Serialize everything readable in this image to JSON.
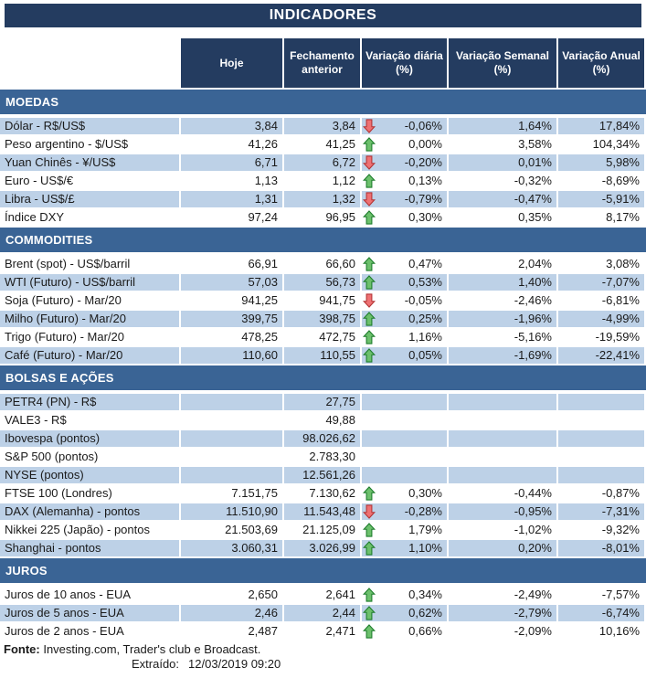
{
  "title": "INDICADORES",
  "columns": [
    {
      "label": "Hoje"
    },
    {
      "label": "Fechamento anterior"
    },
    {
      "label": "Variação diária (%)"
    },
    {
      "label": "Variação Semanal (%)"
    },
    {
      "label": "Variação Anual (%)"
    }
  ],
  "colors": {
    "header_navy": "#243c60",
    "section_blue": "#3a6495",
    "row_shaded_blue": "#bdd1e7",
    "arrow_up_fill": "#6cc06c",
    "arrow_up_stroke": "#1e7d2c",
    "arrow_down_fill": "#ee7173",
    "arrow_down_stroke": "#b43434"
  },
  "sections": [
    {
      "label": "MOEDAS",
      "first_row_shaded": true,
      "rows": [
        {
          "label": "Dólar - R$/US$",
          "hoje": "3,84",
          "fechamento": "3,84",
          "arrow": "down",
          "var_diaria": "-0,06%",
          "var_semanal": "1,64%",
          "var_anual": "17,84%"
        },
        {
          "label": "Peso argentino - $/US$",
          "hoje": "41,26",
          "fechamento": "41,25",
          "arrow": "up",
          "var_diaria": "0,00%",
          "var_semanal": "3,58%",
          "var_anual": "104,34%"
        },
        {
          "label": "Yuan Chinês - ¥/US$",
          "hoje": "6,71",
          "fechamento": "6,72",
          "arrow": "down",
          "var_diaria": "-0,20%",
          "var_semanal": "0,01%",
          "var_anual": "5,98%"
        },
        {
          "label": "Euro - US$/€",
          "hoje": "1,13",
          "fechamento": "1,12",
          "arrow": "up",
          "var_diaria": "0,13%",
          "var_semanal": "-0,32%",
          "var_anual": "-8,69%"
        },
        {
          "label": "Libra - US$/£",
          "hoje": "1,31",
          "fechamento": "1,32",
          "arrow": "down",
          "var_diaria": "-0,79%",
          "var_semanal": "-0,47%",
          "var_anual": "-5,91%"
        },
        {
          "label": "Índice DXY",
          "hoje": "97,24",
          "fechamento": "96,95",
          "arrow": "up",
          "var_diaria": "0,30%",
          "var_semanal": "0,35%",
          "var_anual": "8,17%"
        }
      ]
    },
    {
      "label": "COMMODITIES",
      "first_row_shaded": false,
      "rows": [
        {
          "label": "Brent (spot) - US$/barril",
          "hoje": "66,91",
          "fechamento": "66,60",
          "arrow": "up",
          "var_diaria": "0,47%",
          "var_semanal": "2,04%",
          "var_anual": "3,08%"
        },
        {
          "label": "WTI (Futuro) - US$/barril",
          "hoje": "57,03",
          "fechamento": "56,73",
          "arrow": "up",
          "var_diaria": "0,53%",
          "var_semanal": "1,40%",
          "var_anual": "-7,07%"
        },
        {
          "label": "Soja (Futuro) - Mar/20",
          "hoje": "941,25",
          "fechamento": "941,75",
          "arrow": "down",
          "var_diaria": "-0,05%",
          "var_semanal": "-2,46%",
          "var_anual": "-6,81%"
        },
        {
          "label": "Milho (Futuro) - Mar/20",
          "hoje": "399,75",
          "fechamento": "398,75",
          "arrow": "up",
          "var_diaria": "0,25%",
          "var_semanal": "-1,96%",
          "var_anual": "-4,99%"
        },
        {
          "label": "Trigo (Futuro) - Mar/20",
          "hoje": "478,25",
          "fechamento": "472,75",
          "arrow": "up",
          "var_diaria": "1,16%",
          "var_semanal": "-5,16%",
          "var_anual": "-19,59%"
        },
        {
          "label": "Café (Futuro) - Mar/20",
          "hoje": "110,60",
          "fechamento": "110,55",
          "arrow": "up",
          "var_diaria": "0,05%",
          "var_semanal": "-1,69%",
          "var_anual": "-22,41%"
        }
      ]
    },
    {
      "label": "BOLSAS E AÇÕES",
      "first_row_shaded": true,
      "rows": [
        {
          "label": "PETR4 (PN) - R$",
          "hoje": "",
          "fechamento": "27,75",
          "arrow": "",
          "var_diaria": "",
          "var_semanal": "",
          "var_anual": ""
        },
        {
          "label": "VALE3 - R$",
          "hoje": "",
          "fechamento": "49,88",
          "arrow": "",
          "var_diaria": "",
          "var_semanal": "",
          "var_anual": ""
        },
        {
          "label": "Ibovespa (pontos)",
          "hoje": "",
          "fechamento": "98.026,62",
          "arrow": "",
          "var_diaria": "",
          "var_semanal": "",
          "var_anual": ""
        },
        {
          "label": "S&P 500 (pontos)",
          "hoje": "",
          "fechamento": "2.783,30",
          "arrow": "",
          "var_diaria": "",
          "var_semanal": "",
          "var_anual": ""
        },
        {
          "label": "NYSE (pontos)",
          "hoje": "",
          "fechamento": "12.561,26",
          "arrow": "",
          "var_diaria": "",
          "var_semanal": "",
          "var_anual": ""
        },
        {
          "label": "FTSE 100 (Londres)",
          "hoje": "7.151,75",
          "fechamento": "7.130,62",
          "arrow": "up",
          "var_diaria": "0,30%",
          "var_semanal": "-0,44%",
          "var_anual": "-0,87%"
        },
        {
          "label": "DAX (Alemanha) - pontos",
          "hoje": "11.510,90",
          "fechamento": "11.543,48",
          "arrow": "down",
          "var_diaria": "-0,28%",
          "var_semanal": "-0,95%",
          "var_anual": "-7,31%"
        },
        {
          "label": "Nikkei 225 (Japão) - pontos",
          "hoje": "21.503,69",
          "fechamento": "21.125,09",
          "arrow": "up",
          "var_diaria": "1,79%",
          "var_semanal": "-1,02%",
          "var_anual": "-9,32%"
        },
        {
          "label": "Shanghai - pontos",
          "hoje": "3.060,31",
          "fechamento": "3.026,99",
          "arrow": "up",
          "var_diaria": "1,10%",
          "var_semanal": "0,20%",
          "var_anual": "-8,01%"
        }
      ]
    },
    {
      "label": "JUROS",
      "first_row_shaded": false,
      "rows": [
        {
          "label": "Juros de 10 anos - EUA",
          "hoje": "2,650",
          "fechamento": "2,641",
          "arrow": "up",
          "var_diaria": "0,34%",
          "var_semanal": "-2,49%",
          "var_anual": "-7,57%"
        },
        {
          "label": "Juros de 5 anos - EUA",
          "hoje": "2,46",
          "fechamento": "2,44",
          "arrow": "up",
          "var_diaria": "0,62%",
          "var_semanal": "-2,79%",
          "var_anual": "-6,74%"
        },
        {
          "label": "Juros de 2 anos - EUA",
          "hoje": "2,487",
          "fechamento": "2,471",
          "arrow": "up",
          "var_diaria": "0,66%",
          "var_semanal": "-2,09%",
          "var_anual": "10,16%"
        }
      ]
    }
  ],
  "footer": {
    "source_label": "Fonte:",
    "source_text": " Investing.com, Trader's club e Broadcast.",
    "extracted_label": "Extraído:",
    "extracted_value": "12/03/2019 09:20"
  }
}
